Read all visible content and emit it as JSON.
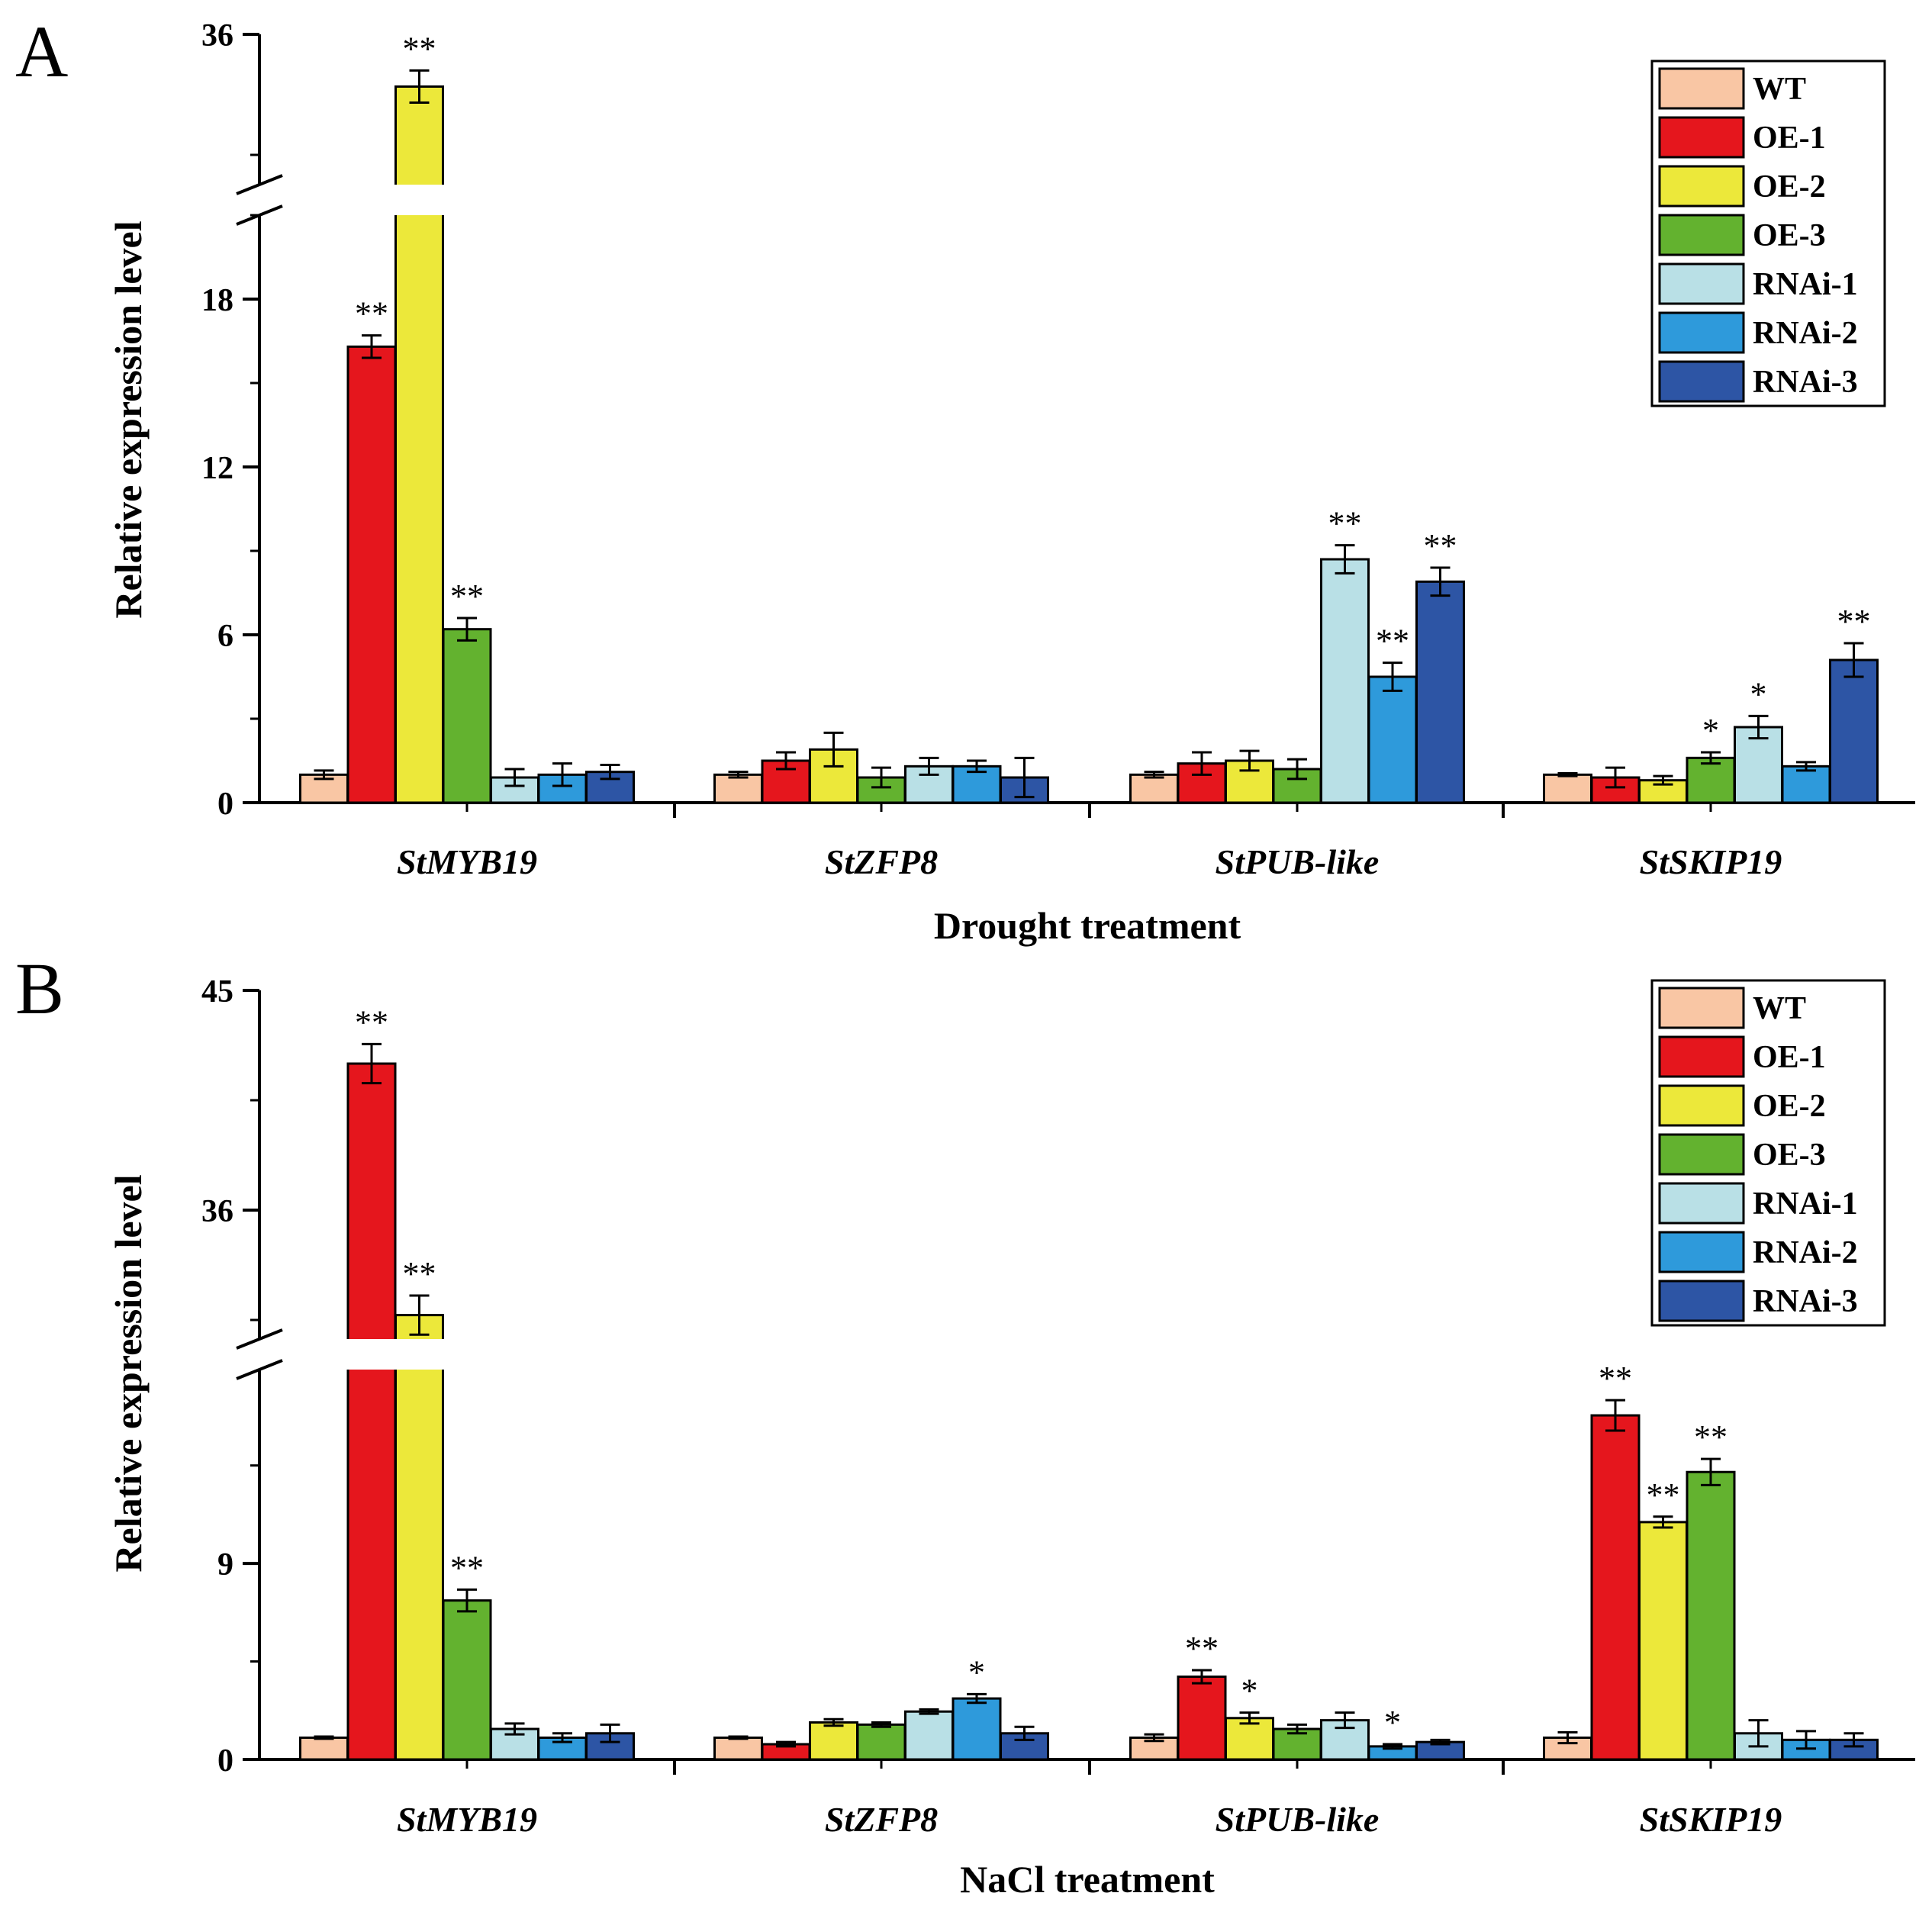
{
  "legend_entries": [
    {
      "name": "WT",
      "color": "#F9C6A4"
    },
    {
      "name": "OE-1",
      "color": "#E5161D"
    },
    {
      "name": "OE-2",
      "color": "#ECE83A"
    },
    {
      "name": "OE-3",
      "color": "#63B22F"
    },
    {
      "name": "RNAi-1",
      "color": "#B9E0E6"
    },
    {
      "name": "RNAi-2",
      "color": "#2E9ADB"
    },
    {
      "name": "RNAi-3",
      "color": "#2D55A5"
    }
  ],
  "chart_data": [
    {
      "type": "bar",
      "panel_label": "A",
      "xlabel": "Drought treatment",
      "ylabel": "Relative expression level",
      "categories": [
        "StMYB19",
        "StZFP8",
        "StPUB-like",
        "StSKIP19"
      ],
      "y_axis_break": {
        "lower_range": [
          0,
          21
        ],
        "upper_range": [
          27,
          36
        ]
      },
      "yticks": [
        0,
        6,
        12,
        18,
        36
      ],
      "yticks_labels": [
        "0",
        "6",
        "12",
        "18",
        "36"
      ],
      "legend_position": "top-right",
      "grid": false,
      "series": [
        {
          "name": "WT",
          "values": [
            1.0,
            1.0,
            1.0,
            1.0
          ],
          "errors": [
            0.15,
            0.1,
            0.1,
            0.05
          ],
          "significance": [
            "",
            "",
            "",
            ""
          ]
        },
        {
          "name": "OE-1",
          "values": [
            16.3,
            1.5,
            1.4,
            0.9
          ],
          "errors": [
            0.4,
            0.3,
            0.4,
            0.35
          ],
          "significance": [
            "**",
            "",
            "",
            ""
          ]
        },
        {
          "name": "OE-2",
          "values": [
            33.4,
            1.9,
            1.5,
            0.8
          ],
          "errors": [
            0.8,
            0.6,
            0.35,
            0.15
          ],
          "significance": [
            "**",
            "",
            "",
            ""
          ]
        },
        {
          "name": "OE-3",
          "values": [
            6.2,
            0.9,
            1.2,
            1.6
          ],
          "errors": [
            0.4,
            0.35,
            0.35,
            0.2
          ],
          "significance": [
            "**",
            "",
            "",
            "*"
          ]
        },
        {
          "name": "RNAi-1",
          "values": [
            0.9,
            1.3,
            8.7,
            2.7
          ],
          "errors": [
            0.3,
            0.3,
            0.5,
            0.4
          ],
          "significance": [
            "",
            "",
            "**",
            "*"
          ]
        },
        {
          "name": "RNAi-2",
          "values": [
            1.0,
            1.3,
            4.5,
            1.3
          ],
          "errors": [
            0.4,
            0.2,
            0.5,
            0.15
          ],
          "significance": [
            "",
            "",
            "**",
            ""
          ]
        },
        {
          "name": "RNAi-3",
          "values": [
            1.1,
            0.9,
            7.9,
            5.1
          ],
          "errors": [
            0.25,
            0.7,
            0.5,
            0.6
          ],
          "significance": [
            "",
            "",
            "**",
            "**"
          ]
        }
      ]
    },
    {
      "type": "bar",
      "panel_label": "B",
      "xlabel": "NaCl treatment",
      "ylabel": "Relative expression level",
      "categories": [
        "StMYB19",
        "StZFP8",
        "StPUB-like",
        "StSKIP19"
      ],
      "y_axis_break": {
        "lower_range": [
          0,
          18.5
        ],
        "upper_range": [
          30,
          45
        ]
      },
      "yticks": [
        0,
        9,
        36,
        45
      ],
      "yticks_labels": [
        "0",
        "9",
        "36",
        "45"
      ],
      "legend_position": "top-right",
      "grid": false,
      "series": [
        {
          "name": "WT",
          "values": [
            1.0,
            1.0,
            1.0,
            1.0
          ],
          "errors": [
            0.05,
            0.05,
            0.15,
            0.25
          ],
          "significance": [
            "",
            "",
            "",
            ""
          ]
        },
        {
          "name": "OE-1",
          "values": [
            42.0,
            0.7,
            3.8,
            15.8
          ],
          "errors": [
            0.8,
            0.1,
            0.3,
            0.7
          ],
          "significance": [
            "**",
            "",
            "**",
            "**"
          ]
        },
        {
          "name": "OE-2",
          "values": [
            31.7,
            1.7,
            1.9,
            10.9
          ],
          "errors": [
            0.8,
            0.15,
            0.25,
            0.25
          ],
          "significance": [
            "**",
            "",
            "*",
            "**"
          ]
        },
        {
          "name": "OE-3",
          "values": [
            7.3,
            1.6,
            1.4,
            13.2
          ],
          "errors": [
            0.5,
            0.1,
            0.2,
            0.6
          ],
          "significance": [
            "**",
            "",
            "",
            "**"
          ]
        },
        {
          "name": "RNAi-1",
          "values": [
            1.4,
            2.2,
            1.8,
            1.2
          ],
          "errors": [
            0.25,
            0.1,
            0.35,
            0.6
          ],
          "significance": [
            "",
            "",
            "",
            ""
          ]
        },
        {
          "name": "RNAi-2",
          "values": [
            1.0,
            2.8,
            0.6,
            0.9
          ],
          "errors": [
            0.2,
            0.2,
            0.1,
            0.4
          ],
          "significance": [
            "",
            "*",
            "*",
            ""
          ]
        },
        {
          "name": "RNAi-3",
          "values": [
            1.2,
            1.2,
            0.8,
            0.9
          ],
          "errors": [
            0.4,
            0.3,
            0.1,
            0.3
          ],
          "significance": [
            "",
            "",
            "",
            ""
          ]
        }
      ]
    }
  ]
}
